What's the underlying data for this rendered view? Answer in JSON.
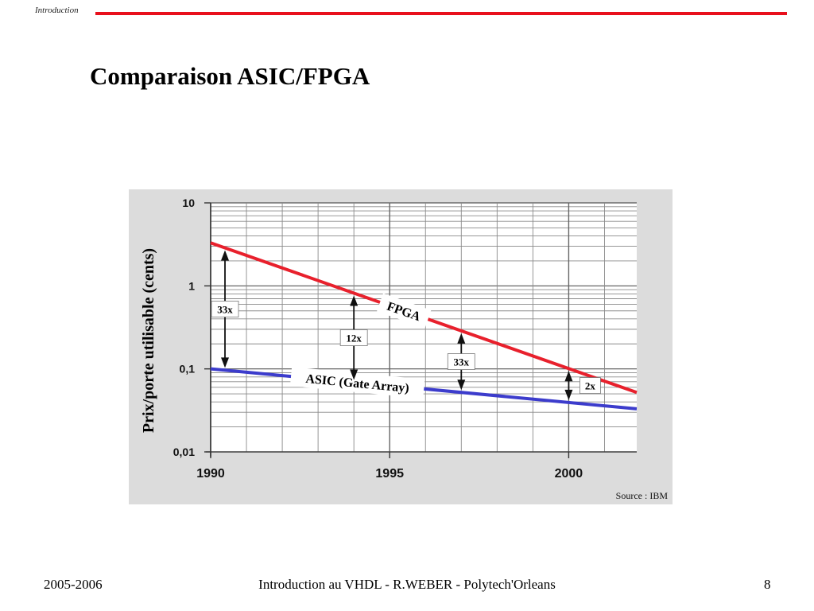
{
  "header": {
    "section_label": "Introduction"
  },
  "slide": {
    "title": "Comparaison ASIC/FPGA"
  },
  "chart_data": {
    "type": "line",
    "ylabel": "Prix/porte utilisable (cents)",
    "xlabel": "",
    "y_scale": "log",
    "ylim": [
      0.01,
      10
    ],
    "xlim": [
      1990,
      2001.9
    ],
    "y_ticks": [
      "10",
      "1",
      "0,1",
      "0,01"
    ],
    "x_ticks": [
      "1990",
      "1995",
      "2000"
    ],
    "grid": true,
    "series": [
      {
        "name": "FPGA",
        "color": "#e8202c",
        "x": [
          1990,
          2001.9
        ],
        "y": [
          3.3,
          0.052
        ]
      },
      {
        "name": "ASIC (Gate Array)",
        "color": "#3c3ccc",
        "x": [
          1990,
          2001.9
        ],
        "y": [
          0.1,
          0.033
        ]
      }
    ],
    "annotations": [
      {
        "label": "33x",
        "year": 1990.4
      },
      {
        "label": "12x",
        "year": 1994
      },
      {
        "label": "33x",
        "year": 1997
      },
      {
        "label": "2x",
        "year": 2000
      }
    ],
    "source": "Source : IBM"
  },
  "footer": {
    "left": "2005-2006",
    "center": "Introduction au VHDL - R.WEBER - Polytech'Orleans",
    "right": "8"
  }
}
